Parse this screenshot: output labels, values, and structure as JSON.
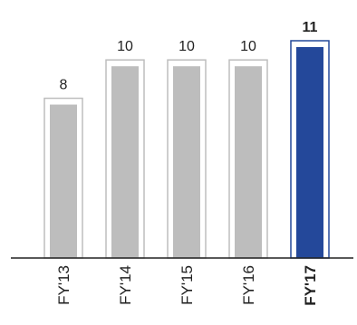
{
  "chart_data": {
    "type": "bar",
    "categories": [
      "FY'13",
      "FY'14",
      "FY'15",
      "FY'16",
      "FY'17"
    ],
    "values": [
      8,
      10,
      10,
      10,
      11
    ],
    "data_labels": [
      "8",
      "10",
      "10",
      "10",
      "11"
    ],
    "highlight_index": 4,
    "ylim": [
      0,
      11
    ],
    "grid": false,
    "legend": "none",
    "colors": {
      "bar": "#bdbdbd",
      "bar_outline": "#bdbdbd",
      "highlight_bar": "#24489a",
      "highlight_outline": "#24489a",
      "baseline": "#222222",
      "label_text": "#222222"
    }
  }
}
